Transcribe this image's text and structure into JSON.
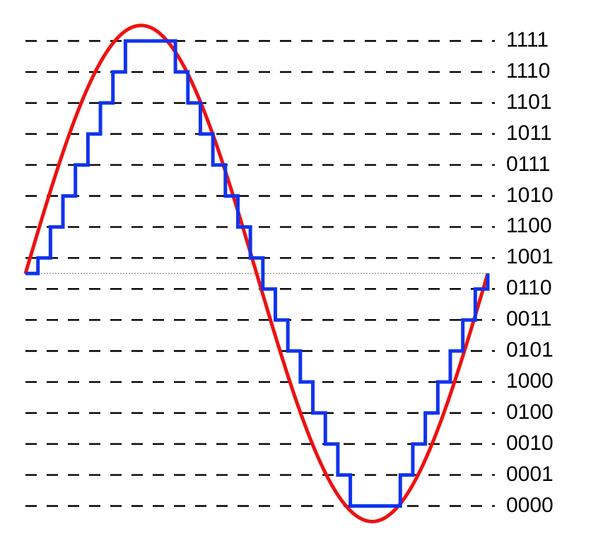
{
  "diagram": {
    "levels": [
      "1111",
      "1110",
      "1101",
      "1011",
      "0111",
      "1010",
      "1100",
      "1001",
      "0110",
      "0011",
      "0101",
      "1000",
      "0100",
      "0010",
      "0001",
      "0000"
    ],
    "sine_curve": {
      "color": "#ee1111"
    },
    "step_signal": {
      "color": "#1133ee",
      "samples": [
        7.5,
        8,
        9,
        10,
        11,
        12,
        13,
        14,
        15,
        15,
        15,
        15,
        14,
        13,
        12,
        11,
        10,
        9,
        8,
        7,
        6,
        5,
        4,
        3,
        2,
        1,
        0,
        0,
        0,
        0,
        1,
        2,
        3,
        4,
        5,
        6,
        7,
        7.5
      ]
    },
    "level_line_color": "#000000",
    "midline_color": "#999999"
  }
}
